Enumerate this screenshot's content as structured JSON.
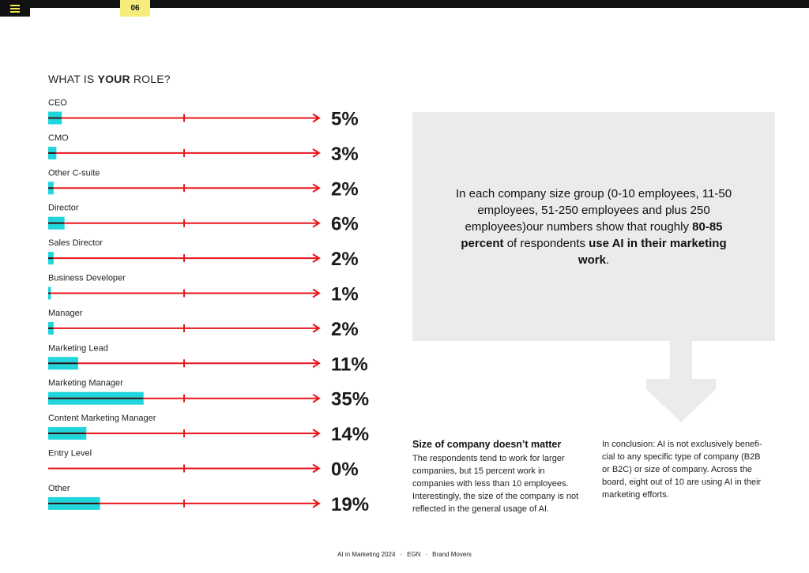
{
  "header": {
    "page_number": "06",
    "menu_icon": "hamburger-menu-icon",
    "accent_color": "#f6ec7b"
  },
  "question": {
    "prefix": "WHAT IS ",
    "emphasis": "YOUR",
    "suffix": " ROLE?"
  },
  "chart_data": {
    "type": "bar",
    "title": "WHAT IS YOUR ROLE?",
    "categories": [
      "CEO",
      "CMO",
      "Other C-suite",
      "Director",
      "Sales Director",
      "Business Developer",
      "Manager",
      "Marketing Lead",
      "Marketing Manager",
      "Content Marketing Manager",
      "Entry Level",
      "Other"
    ],
    "values": [
      5,
      3,
      2,
      6,
      2,
      1,
      2,
      11,
      35,
      14,
      0,
      19
    ],
    "labels": [
      "5%",
      "3%",
      "2%",
      "6%",
      "2%",
      "1%",
      "2%",
      "11%",
      "35%",
      "14%",
      "0%",
      "19%"
    ],
    "unit": "%",
    "bar_color": "#1ed6db",
    "line_color": "#e8161b"
  },
  "quote": {
    "line1": "In each company size group (0-10 employees, 11-50 employees, 51-250 employees and plus 250 employees)our numbers show that roughly ",
    "bold1": "80-85 percent",
    "line2": " of respondents ",
    "bold2": "use AI in their marketing work",
    "end": "."
  },
  "columns": {
    "left_title": "Size of company doesn’t matter",
    "left_text": "The respondents tend to work for larger companies, but 15 percent work in companies with less than 10 employees. Interestingly, the size of the company is not reflected in the general usage of AI.",
    "right_text": "In conclusion: AI is not exclusively benefi-cial to any specific type of company (B2B or B2C) or size of company. Across the board, eight out of 10 are using AI in their marketing efforts."
  },
  "footer": {
    "item1": "AI in Marketing 2024",
    "item2": "EGN",
    "item3": "Brand Movers",
    "separator": "·"
  }
}
